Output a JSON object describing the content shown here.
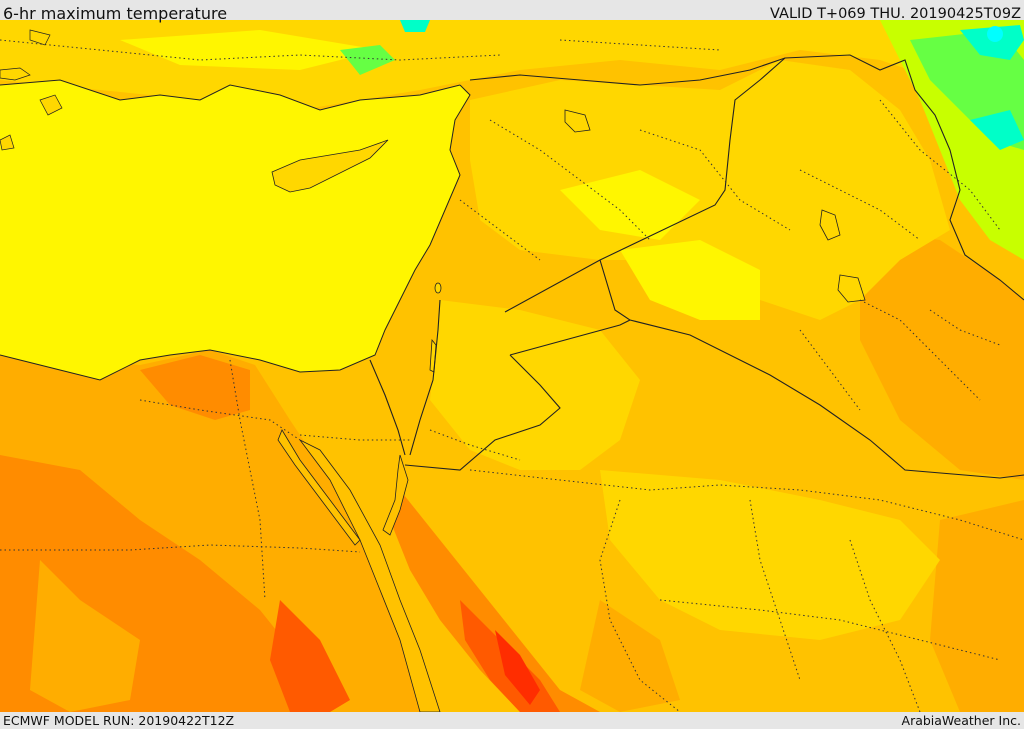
{
  "header": {
    "title": "6-hr maximum temperature",
    "valid": "VALID T+069 THU. 20190425T09Z"
  },
  "footer": {
    "model_run": "ECMWF MODEL RUN: 20190422T12Z",
    "credit": "ArabiaWeather Inc."
  },
  "colors": {
    "very_hot": "#ff2d00",
    "hot": "#ff5a00",
    "warm_orange": "#ff8c00",
    "orange": "#ffad00",
    "amber": "#ffc200",
    "gold": "#ffd700",
    "yellow": "#fff600",
    "lime": "#c8ff00",
    "green": "#66ff44",
    "aqua": "#00ffc8",
    "cyan": "#00ffff"
  }
}
